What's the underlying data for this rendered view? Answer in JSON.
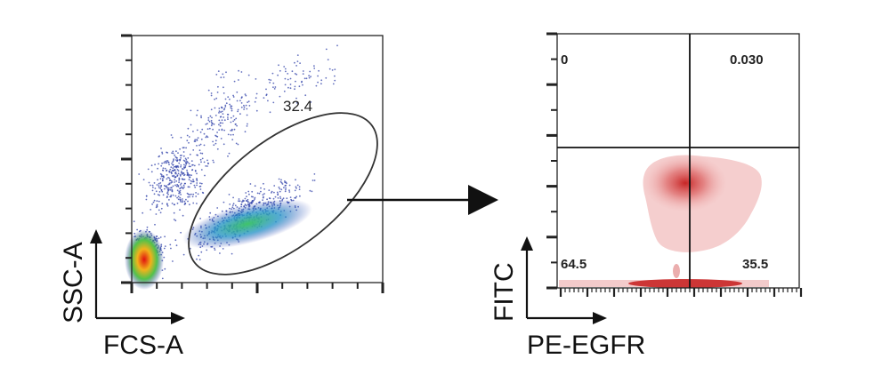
{
  "chart_data": [
    {
      "type": "scatter",
      "panel": "left",
      "xlabel": "FCS-A",
      "ylabel": "SSC-A",
      "grid": false,
      "gate": {
        "shape": "ellipse",
        "label": "32.4"
      },
      "density_clusters": [
        {
          "x": 0.05,
          "y": 0.06,
          "level": "peak"
        },
        {
          "x": 0.45,
          "y": 0.2,
          "level": "medium"
        }
      ]
    },
    {
      "type": "heatmap",
      "panel": "right",
      "xlabel": "PE-EGFR",
      "ylabel": "FITC",
      "grid": false,
      "quadrants": {
        "top_left": "0",
        "top_right": "0.030",
        "bottom_left": "64.5",
        "bottom_right": "35.5"
      },
      "colors": {
        "density": "#c41c1c",
        "gate_line": "#111111"
      }
    }
  ],
  "arrow": {
    "from": "left-gate",
    "to": "right-plot"
  }
}
